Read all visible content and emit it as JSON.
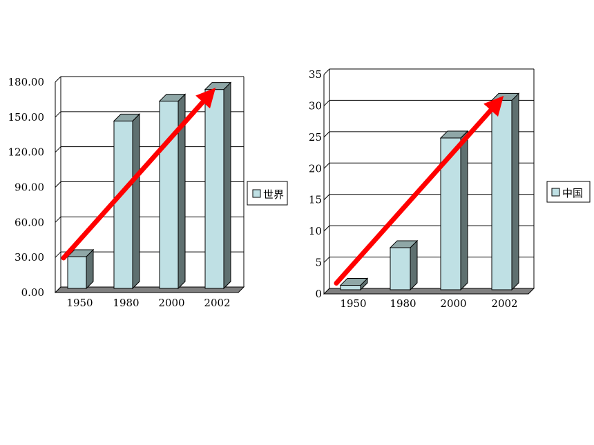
{
  "chart_data": [
    {
      "type": "bar",
      "categories": [
        "1950",
        "1980",
        "2000",
        "2002"
      ],
      "series": [
        {
          "name": "世界",
          "values": [
            26,
            142,
            159,
            169
          ]
        }
      ],
      "ylim": [
        0,
        180
      ],
      "yticks": [
        "0.00",
        "30.00",
        "60.00",
        "90.00",
        "120.00",
        "150.00",
        "180.00"
      ],
      "grid": true,
      "legend": "right",
      "trend_arrow": true,
      "colors": {
        "bar_front": "#bfe0e4",
        "bar_side": "#5f7070",
        "bar_top": "#8fa7a7",
        "arrow": "#ff0000"
      }
    },
    {
      "type": "bar",
      "categories": [
        "1950",
        "1980",
        "2000",
        "2002"
      ],
      "series": [
        {
          "name": "中国",
          "values": [
            0.5,
            6.5,
            24,
            30
          ]
        }
      ],
      "ylim": [
        0,
        35
      ],
      "yticks": [
        "0",
        "5",
        "10",
        "15",
        "20",
        "25",
        "30",
        "35"
      ],
      "grid": true,
      "legend": "right",
      "trend_arrow": true,
      "colors": {
        "bar_front": "#bfe0e4",
        "bar_side": "#5f7070",
        "bar_top": "#8fa7a7",
        "arrow": "#ff0000"
      }
    }
  ]
}
